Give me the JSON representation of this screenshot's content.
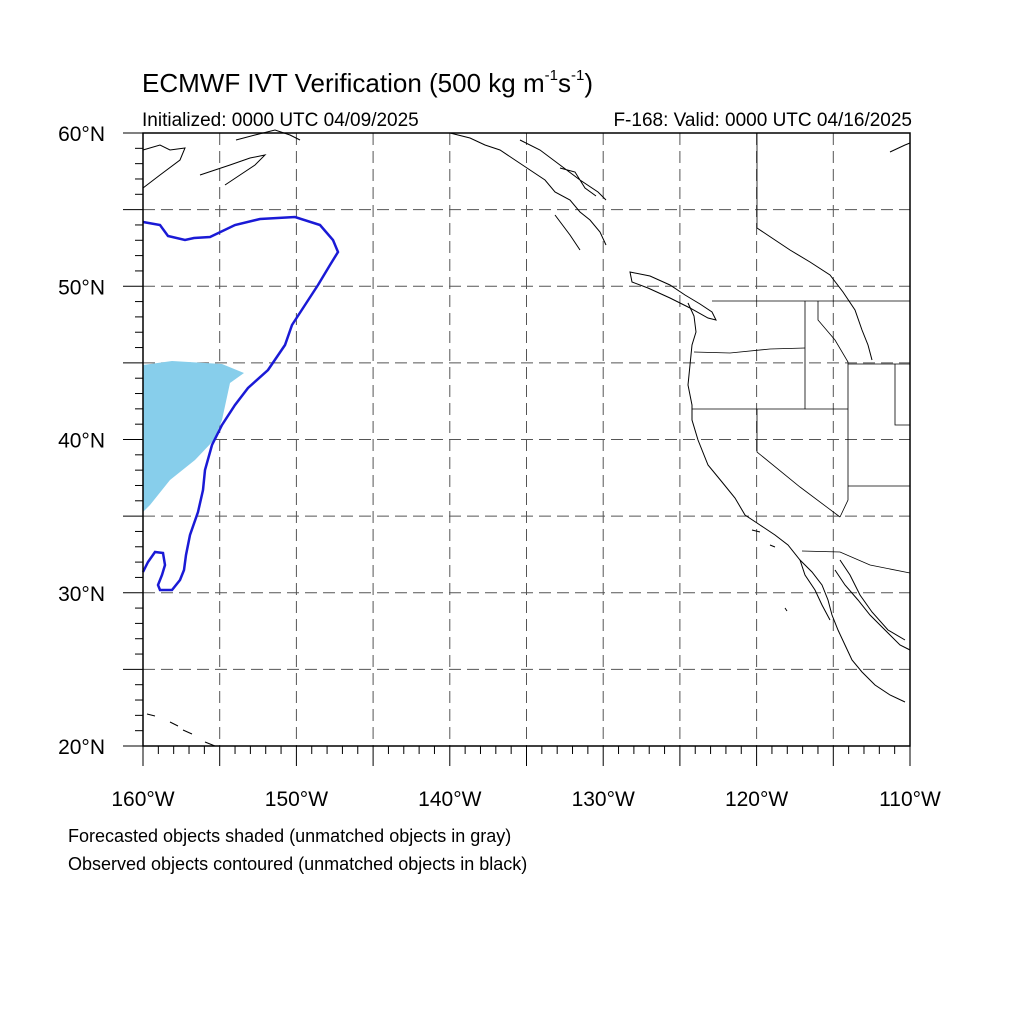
{
  "title": {
    "prefix": "ECMWF IVT Verification (500 kg m",
    "exp1": "-1",
    "mid": "s",
    "exp2": "-1",
    "suffix": ")"
  },
  "subtitle": {
    "initialized": "Initialized: 0000 UTC 04/09/2025",
    "valid": "F-168: Valid: 0000 UTC 04/16/2025"
  },
  "map": {
    "extent": {
      "lon_min": -160,
      "lon_max": -110,
      "lat_min": 20,
      "lat_max": 60
    },
    "lat_labels": [
      {
        "lat": 60,
        "label": "60°N"
      },
      {
        "lat": 50,
        "label": "50°N"
      },
      {
        "lat": 40,
        "label": "40°N"
      },
      {
        "lat": 30,
        "label": "30°N"
      },
      {
        "lat": 20,
        "label": "20°N"
      }
    ],
    "lon_labels": [
      {
        "lon": -160,
        "label": "160°W"
      },
      {
        "lon": -150,
        "label": "150°W"
      },
      {
        "lon": -140,
        "label": "140°W"
      },
      {
        "lon": -130,
        "label": "130°W"
      },
      {
        "lon": -120,
        "label": "120°W"
      },
      {
        "lon": -110,
        "label": "110°W"
      }
    ],
    "grid_spacing_deg": 5,
    "colors": {
      "forecast_matched": "#87ceeb",
      "observed_matched": "#1a1ad6",
      "coastline": "#000000",
      "grid": "#555555"
    }
  },
  "footer": {
    "line1": "Forecasted objects shaded (unmatched objects in gray)",
    "line2": "Observed objects contoured (unmatched objects in black)"
  }
}
